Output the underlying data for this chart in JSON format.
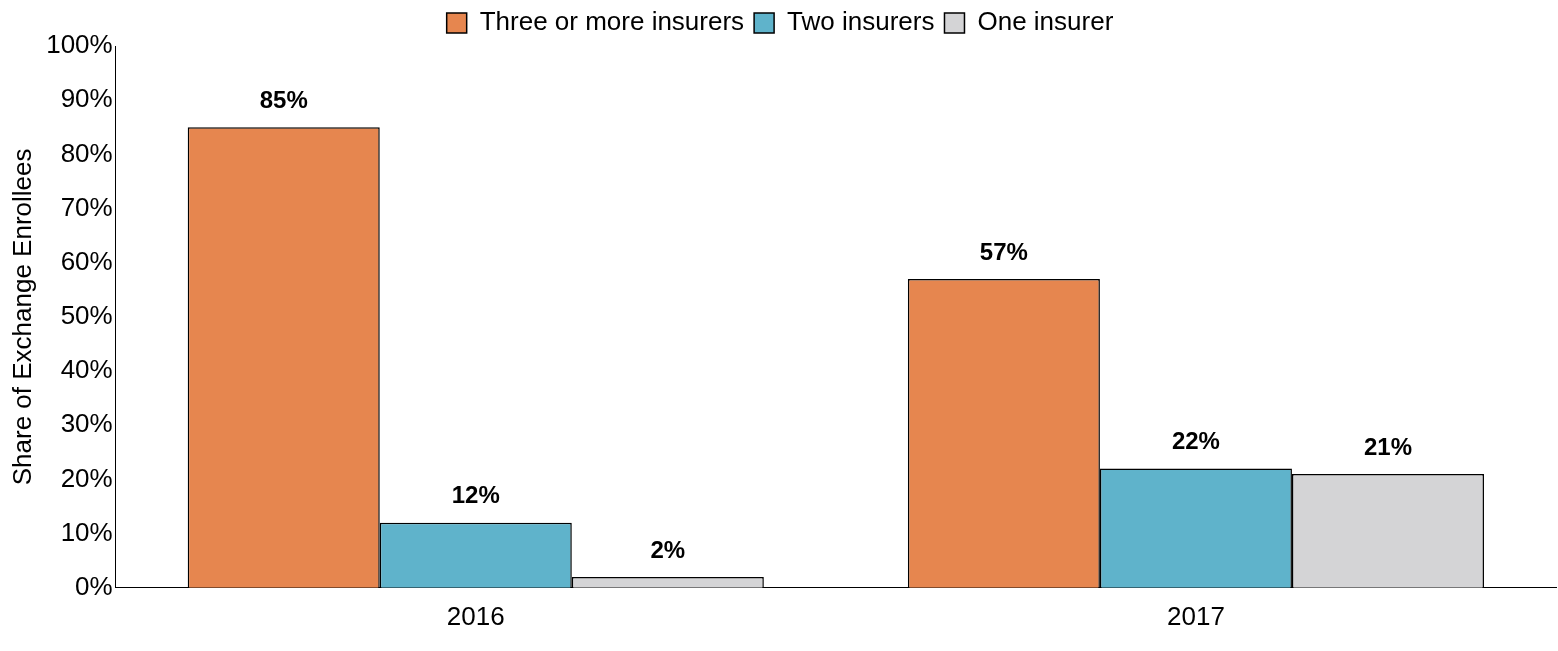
{
  "chart_data": {
    "type": "bar",
    "ylabel": "Share of Exchange Enrollees",
    "categories": [
      "2016",
      "2017"
    ],
    "series": [
      {
        "name": "Three or more insurers",
        "color": "#e6864f",
        "values": [
          85,
          57
        ]
      },
      {
        "name": "Two insurers",
        "color": "#5fb3cb",
        "values": [
          12,
          22
        ]
      },
      {
        "name": "One insurer",
        "color": "#d4d4d6",
        "values": [
          2,
          21
        ]
      }
    ],
    "ylim": [
      0,
      100
    ],
    "yticks": [
      {
        "value": 0,
        "label": "0%"
      },
      {
        "value": 10,
        "label": "10%"
      },
      {
        "value": 20,
        "label": "20%"
      },
      {
        "value": 30,
        "label": "30%"
      },
      {
        "value": 40,
        "label": "40%"
      },
      {
        "value": 50,
        "label": "50%"
      },
      {
        "value": 60,
        "label": "60%"
      },
      {
        "value": 70,
        "label": "70%"
      },
      {
        "value": 80,
        "label": "80%"
      },
      {
        "value": 90,
        "label": "90%"
      },
      {
        "value": 100,
        "label": "100%"
      }
    ],
    "value_labels": [
      [
        "85%",
        "57%"
      ],
      [
        "12%",
        "22%"
      ],
      [
        "2%",
        "21%"
      ]
    ],
    "grid": false,
    "legend": "top"
  }
}
